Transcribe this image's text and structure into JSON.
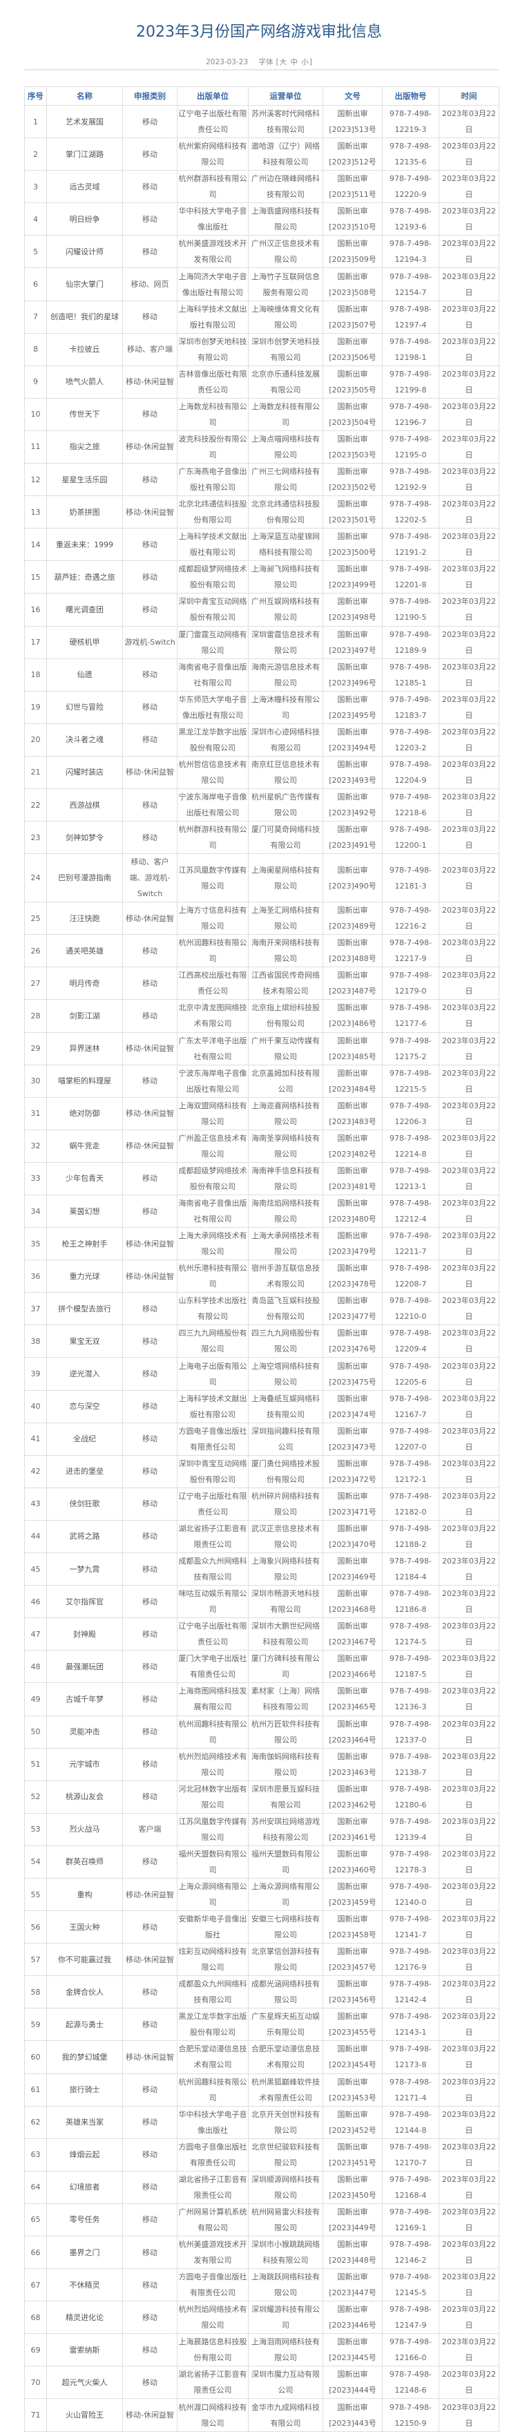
{
  "page": {
    "title": "2023年3月份国产网络游戏审批信息",
    "date": "2023-03-23",
    "font_label": "字体",
    "font_open": "[",
    "font_large": "大",
    "font_medium": "中",
    "font_small": "小",
    "font_close": "]"
  },
  "colors": {
    "title": "#2d5b8e",
    "header": "#3a6aa5",
    "text": "#666666",
    "border": "#dedede"
  },
  "table": {
    "headers": [
      "序号",
      "名称",
      "申报类别",
      "出版单位",
      "运营单位",
      "文号",
      "出版物号",
      "时间"
    ],
    "rows": [
      [
        "1",
        "艺术发展国",
        "移动",
        "辽宁电子出版社有限责任公司",
        "苏州溪客时代网络科技有限公司",
        "国新出审[2023]513号",
        "978-7-498-12219-3",
        "2023年03月22日"
      ],
      [
        "2",
        "掌门江湖路",
        "移动",
        "杭州紫府网络科技有限公司",
        "遨哈游（辽宁）网络科技有限公司",
        "国新出审[2023]512号",
        "978-7-498-12135-6",
        "2023年03月22日"
      ],
      [
        "3",
        "远古灵域",
        "移动",
        "杭州群游科技有限公司",
        "广州边在晓峰网络科技有限公司",
        "国新出审[2023]511号",
        "978-7-498-12220-9",
        "2023年03月22日"
      ],
      [
        "4",
        "明日纷争",
        "移动",
        "华中科技大学电子音像出版社",
        "上海翡盛网络科技有限公司",
        "国新出审[2023]510号",
        "978-7-498-12193-6",
        "2023年03月22日"
      ],
      [
        "5",
        "闪耀设计师",
        "移动",
        "杭州美盛游戏技术开发有限公司",
        "广州汉正信息技术有限公司",
        "国新出审[2023]509号",
        "978-7-498-12194-3",
        "2023年03月22日"
      ],
      [
        "6",
        "仙宗大掌门",
        "移动、网页",
        "上海同济大学电子音像出版社有限公司",
        "上海竹子互联网信息服务有限公司",
        "国新出审[2023]508号",
        "978-7-498-12154-7",
        "2023年03月22日"
      ],
      [
        "7",
        "创造吧！我们的星球",
        "移动",
        "上海科学技术文献出版社有限公司",
        "上海映维体育文化有限公司",
        "国新出审[2023]507号",
        "978-7-498-12197-4",
        "2023年03月22日"
      ],
      [
        "8",
        "卡拉彼丘",
        "移动、客户端",
        "深圳市创梦天地科技有限公司",
        "深圳市创梦天地科技有限公司",
        "国新出审[2023]506号",
        "978-7-498-12198-1",
        "2023年03月22日"
      ],
      [
        "9",
        "喷气火箭人",
        "移动-休闲益智",
        "吉林音像出版社有限责任公司",
        "北京亦乐通科技发展有限公司",
        "国新出审[2023]505号",
        "978-7-498-12199-8",
        "2023年03月22日"
      ],
      [
        "10",
        "传世天下",
        "移动",
        "上海数龙科技有限公司",
        "上海数龙科技有限公司",
        "国新出审[2023]504号",
        "978-7-498-12196-7",
        "2023年03月22日"
      ],
      [
        "11",
        "指尖之旅",
        "移动-休闲益智",
        "波克科技股份有限公司",
        "上海点喵网络科技有限公司",
        "国新出审[2023]503号",
        "978-7-498-12195-0",
        "2023年03月22日"
      ],
      [
        "12",
        "星星生活乐园",
        "移动",
        "广东海燕电子音像出版社有限公司",
        "广州三七网络科技有限公司",
        "国新出审[2023]502号",
        "978-7-498-12192-9",
        "2023年03月22日"
      ],
      [
        "13",
        "奶茶拼图",
        "移动-休闲益智",
        "北京北纬通信科技股份有限公司",
        "北京北纬通信科技股份有限公司",
        "国新出审[2023]501号",
        "978-7-498-12202-5",
        "2023年03月22日"
      ],
      [
        "14",
        "重返未来：1999",
        "移动",
        "上海科学技术文献出版社有限公司",
        "上海深蓝互动星锦网络科技有限公司",
        "国新出审[2023]500号",
        "978-7-498-12191-2",
        "2023年03月22日"
      ],
      [
        "15",
        "葫芦娃：奇遇之旅",
        "移动",
        "成都超级梦网络技术股份有限公司",
        "上海昶飞网络科技有限公司",
        "国新出审[2023]499号",
        "978-7-498-12201-8",
        "2023年03月22日"
      ],
      [
        "16",
        "曙光调查团",
        "移动",
        "深圳中青宝互动网络股份有限公司",
        "广州互娱网络科技有限公司",
        "国新出审[2023]498号",
        "978-7-498-12190-5",
        "2023年03月22日"
      ],
      [
        "17",
        "硬核机甲",
        "游戏机-Switch",
        "厦门雷霆互动网络有限公司",
        "深圳雷霆信息技术有限公司",
        "国新出审[2023]497号",
        "978-7-498-12189-9",
        "2023年03月22日"
      ],
      [
        "18",
        "仙遗",
        "移动",
        "海南省电子音像出版社有限公司",
        "海南元游信息技术有限公司",
        "国新出审[2023]496号",
        "978-7-498-12185-1",
        "2023年03月22日"
      ],
      [
        "19",
        "幻世与冒险",
        "移动",
        "华东师范大学电子音像出版社有限公司",
        "上海沐瞳科技有限公司",
        "国新出审[2023]495号",
        "978-7-498-12183-7",
        "2023年03月22日"
      ],
      [
        "20",
        "决斗者之魂",
        "移动",
        "黑龙江龙华数字出版股份有限公司",
        "深圳市心迹网络科技有限公司",
        "国新出审[2023]494号",
        "978-7-498-12203-2",
        "2023年03月22日"
      ],
      [
        "21",
        "闪耀时装店",
        "移动-休闲益智",
        "杭州哲信信息技术有限公司",
        "南京红豆信息技术有限公司",
        "国新出审[2023]493号",
        "978-7-498-12204-9",
        "2023年03月22日"
      ],
      [
        "22",
        "西游战棋",
        "移动",
        "宁波东海岸电子音像出版社有限公司",
        "杭州星帆广告传媒有限公司",
        "国新出审[2023]492号",
        "978-7-498-12218-6",
        "2023年03月22日"
      ],
      [
        "23",
        "剑神如梦令",
        "移动",
        "杭州群游科技有限公司",
        "厦门可莫奇网络科技有限公司",
        "国新出审[2023]491号",
        "978-7-498-12200-1",
        "2023年03月22日"
      ],
      [
        "24",
        "巴别号漫游指南",
        "移动、客户端、游戏机-Switch",
        "江苏凤凰数字传媒有限公司",
        "上海阑星网络科技有限公司",
        "国新出审[2023]490号",
        "978-7-498-12181-3",
        "2023年03月22日"
      ],
      [
        "25",
        "汪汪快跑",
        "移动-休闲益智",
        "上海方寸信息科技有限公司",
        "上海圣汇网络科技有限公司",
        "国新出审[2023]489号",
        "978-7-498-12216-2",
        "2023年03月22日"
      ],
      [
        "26",
        "通关吧英雄",
        "移动",
        "杭州润趣科技有限公司",
        "海南开来网络科技有限公司",
        "国新出审[2023]488号",
        "978-7-498-12217-9",
        "2023年03月22日"
      ],
      [
        "27",
        "明月传奇",
        "移动",
        "江西高校出版社有限责任公司",
        "江西省国民传奇网络技术有限公司",
        "国新出审[2023]487号",
        "978-7-498-12179-0",
        "2023年03月22日"
      ],
      [
        "28",
        "剑影江湖",
        "移动",
        "北京中清龙图网络技术有限公司",
        "北京指上缤纷科技股份有限公司",
        "国新出审[2023]486号",
        "978-7-498-12177-6",
        "2023年03月22日"
      ],
      [
        "29",
        "异界迷林",
        "移动-休闲益智",
        "广东太平洋电子出版社有限公司",
        "广州千果互动传媒有限公司",
        "国新出审[2023]485号",
        "978-7-498-12175-2",
        "2023年03月22日"
      ],
      [
        "30",
        "喵掌柜的料理屋",
        "移动",
        "宁波东海岸电子音像出版社有限公司",
        "北京盖姆加科技有限公司",
        "国新出审[2023]484号",
        "978-7-498-12215-5",
        "2023年03月22日"
      ],
      [
        "31",
        "绝对防御",
        "移动-休闲益智",
        "上海双盟网络科技有限公司",
        "上海迩喜网络科技有限公司",
        "国新出审[2023]483号",
        "978-7-498-12206-3",
        "2023年03月22日"
      ],
      [
        "32",
        "蜗牛竞走",
        "移动-休闲益智",
        "广州盈正信息技术有限公司",
        "海南圣享网络科技有限公司",
        "国新出审[2023]482号",
        "978-7-498-12214-8",
        "2023年03月22日"
      ],
      [
        "33",
        "少年包青天",
        "移动",
        "成都超级梦网络技术股份有限公司",
        "海南神手信息科技有限公司",
        "国新出审[2023]481号",
        "978-7-498-12213-1",
        "2023年03月22日"
      ],
      [
        "34",
        "莱茵幻想",
        "移动",
        "海南省电子音像出版社有限公司",
        "海南炫焰网络科技有限公司",
        "国新出审[2023]480号",
        "978-7-498-12212-4",
        "2023年03月22日"
      ],
      [
        "35",
        "枪王之神射手",
        "移动-休闲益智",
        "上海大承网络技术有限公司",
        "上海大承网络技术有限公司",
        "国新出审[2023]479号",
        "978-7-498-12211-7",
        "2023年03月22日"
      ],
      [
        "36",
        "重力光球",
        "移动-休闲益智",
        "杭州乐港科技有限公司",
        "宿州手游互联信息技术有限公司",
        "国新出审[2023]478号",
        "978-7-498-12208-7",
        "2023年03月22日"
      ],
      [
        "37",
        "拼个模型去旅行",
        "移动",
        "山东科学技术出版社有限公司",
        "青岛蓝飞互娱科技股份有限公司",
        "国新出审[2023]477号",
        "978-7-498-12210-0",
        "2023年03月22日"
      ],
      [
        "38",
        "果宝无双",
        "移动",
        "四三九九网络股份有限公司",
        "四三九九网络股份有限公司",
        "国新出审[2023]476号",
        "978-7-498-12209-4",
        "2023年03月22日"
      ],
      [
        "39",
        "逆光潜入",
        "移动",
        "上海电子出版有限公司",
        "上海空塔网络科技有限公司",
        "国新出审[2023]475号",
        "978-7-498-12205-6",
        "2023年03月22日"
      ],
      [
        "40",
        "恋与深空",
        "移动",
        "上海科学技术文献出版社有限公司",
        "上海叠纸互娱网络科技有限公司",
        "国新出审[2023]474号",
        "978-7-498-12167-7",
        "2023年03月22日"
      ],
      [
        "41",
        "全战纪",
        "移动",
        "方圆电子音像出版社有限责任公司",
        "深圳指间趣科技有限公司",
        "国新出审[2023]473号",
        "978-7-498-12207-0",
        "2023年03月22日"
      ],
      [
        "42",
        "进击的堡垒",
        "移动",
        "深圳中青宝互动网络股份有限公司",
        "厦门勇仕网络技术股份有限公司",
        "国新出审[2023]472号",
        "978-7-498-12172-1",
        "2023年03月22日"
      ],
      [
        "43",
        "侠剑狂歌",
        "移动",
        "辽宁电子出版社有限责任公司",
        "杭州碎片网络科技有限公司",
        "国新出审[2023]471号",
        "978-7-498-12182-0",
        "2023年03月22日"
      ],
      [
        "44",
        "武将之路",
        "移动",
        "湖北省扬子江影音有限责任公司",
        "武汉正祟信息技术有限公司",
        "国新出审[2023]470号",
        "978-7-498-12188-2",
        "2023年03月22日"
      ],
      [
        "45",
        "一梦九霄",
        "移动",
        "成都盈众九州网络科技有限公司",
        "上海象兴网络科技有限公司",
        "国新出审[2023]469号",
        "978-7-498-12184-4",
        "2023年03月22日"
      ],
      [
        "46",
        "艾尔指挥官",
        "移动",
        "咪咕互动娱乐有限公司",
        "深圳市畅游天地科技有限公司",
        "国新出审[2023]468号",
        "978-7-498-12186-8",
        "2023年03月22日"
      ],
      [
        "47",
        "封神殿",
        "移动",
        "辽宁电子出版社有限责任公司",
        "深圳市大鹏世纪网络科技有限公司",
        "国新出审[2023]467号",
        "978-7-498-12174-5",
        "2023年03月22日"
      ],
      [
        "48",
        "最强潮玩团",
        "移动",
        "厦门大学电子出版社有限责任公司",
        "厦门方碑科技有限公司",
        "国新出审[2023]466号",
        "978-7-498-12187-5",
        "2023年03月22日"
      ],
      [
        "49",
        "古城千年梦",
        "移动",
        "上海商图网络科技发展有限公司",
        "素材家（上海）网络科技有限公司",
        "国新出审[2023]465号",
        "978-7-498-12136-3",
        "2023年03月22日"
      ],
      [
        "50",
        "灵能冲击",
        "移动",
        "杭州润趣科技有限公司",
        "杭州万匠软件科技有限公司",
        "国新出审[2023]464号",
        "978-7-498-12137-0",
        "2023年03月22日"
      ],
      [
        "51",
        "元宇城市",
        "移动",
        "杭州烈焰网络技术有限公司",
        "海南伽蚂网络科技有限公司",
        "国新出审[2023]463号",
        "978-7-498-12138-7",
        "2023年03月22日"
      ],
      [
        "52",
        "桃源山友会",
        "移动",
        "河北冠林数字出版有限公司",
        "深圳市愿景互娱科技有限公司",
        "国新出审[2023]462号",
        "978-7-498-12180-6",
        "2023年03月22日"
      ],
      [
        "53",
        "烈火战马",
        "客户端",
        "江苏凤凰数字传媒有限公司",
        "苏州安琪拉网络游戏科技有限公司",
        "国新出审[2023]461号",
        "978-7-498-12139-4",
        "2023年03月22日"
      ],
      [
        "54",
        "群英召唤师",
        "移动",
        "福州天盟数码有限公司",
        "福州天盟数码有限公司",
        "国新出审[2023]460号",
        "978-7-498-12178-3",
        "2023年03月22日"
      ],
      [
        "55",
        "重构",
        "移动-休闲益智",
        "上海众源网络有限公司",
        "上海众源网络有限公司",
        "国新出审[2023]459号",
        "978-7-498-12140-0",
        "2023年03月22日"
      ],
      [
        "56",
        "王国火种",
        "移动",
        "安徽新华电子音像出版社",
        "安徽三七网络科技有限公司",
        "国新出审[2023]458号",
        "978-7-498-12141-7",
        "2023年03月22日"
      ],
      [
        "57",
        "你不可能赢过我",
        "移动-休闲益智",
        "炫彩互动网络科技有限公司",
        "北京掌信创游科技有限公司",
        "国新出审[2023]457号",
        "978-7-498-12176-9",
        "2023年03月22日"
      ],
      [
        "58",
        "金牌合伙人",
        "移动",
        "成都盈众九州网络科技有限公司",
        "成都光涵网络科技有限公司",
        "国新出审[2023]456号",
        "978-7-498-12142-4",
        "2023年03月22日"
      ],
      [
        "59",
        "起源与勇士",
        "移动",
        "黑龙江龙华数字出版股份有限公司",
        "广东星辉天拓互动娱乐有限公司",
        "国新出审[2023]455号",
        "978-7-498-12143-1",
        "2023年03月22日"
      ],
      [
        "60",
        "我的梦幻城堡",
        "移动-休闲益智",
        "合肥乐堂动漫信息技术有限公司",
        "合肥乐堂动漫信息技术有限公司",
        "国新出审[2023]454号",
        "978-7-498-12173-8",
        "2023年03月22日"
      ],
      [
        "61",
        "旅行骑士",
        "移动",
        "杭州润趣科技有限公司",
        "杭州黑狐巅峰软件技术有限责任公司",
        "国新出审[2023]453号",
        "978-7-498-12171-4",
        "2023年03月22日"
      ],
      [
        "62",
        "英雄来当家",
        "移动",
        "华中科技大学电子音像出版社",
        "北京开天创世科技有限公司",
        "国新出审[2023]452号",
        "978-7-498-12144-8",
        "2023年03月22日"
      ],
      [
        "63",
        "烽烟云起",
        "移动",
        "方圆电子音像出版社有限责任公司",
        "北京世纪骏软科技有限公司",
        "国新出审[2023]451号",
        "978-7-498-12170-7",
        "2023年03月22日"
      ],
      [
        "64",
        "幻境旅者",
        "移动",
        "湖北省扬子江影音有限责任公司",
        "深圳顺源网络科技有限公司",
        "国新出审[2023]450号",
        "978-7-498-12168-4",
        "2023年03月22日"
      ],
      [
        "65",
        "零号任务",
        "移动",
        "广州网易计算机系统有限公司",
        "杭州网易雷火科技有限公司",
        "国新出审[2023]449号",
        "978-7-498-12169-1",
        "2023年03月22日"
      ],
      [
        "66",
        "墨界之门",
        "移动",
        "杭州美盛游戏技术开发有限公司",
        "深圳市小猴跳跳网络科技有限公司",
        "国新出审[2023]448号",
        "978-7-498-12146-2",
        "2023年03月22日"
      ],
      [
        "67",
        "不休精灵",
        "移动",
        "方圆电子音像出版社有限责任公司",
        "上海跳跃网络科技有限公司",
        "国新出审[2023]447号",
        "978-7-498-12145-5",
        "2023年03月22日"
      ],
      [
        "68",
        "精灵进化论",
        "移动",
        "杭州烈焰网络技术有限公司",
        "深圳耀游科技有限公司",
        "国新出审[2023]446号",
        "978-7-498-12147-9",
        "2023年03月22日"
      ],
      [
        "69",
        "雷索纳斯",
        "移动",
        "上海晨路信息科技股份有限公司",
        "上海泪雨网络科技有限公司",
        "国新出审[2023]445号",
        "978-7-498-12166-0",
        "2023年03月22日"
      ],
      [
        "70",
        "超元气火柴人",
        "移动",
        "湖北省扬子江影音有限责任公司",
        "深圳市魔力互动有限公司",
        "国新出审[2023]444号",
        "978-7-498-12148-6",
        "2023年03月22日"
      ],
      [
        "71",
        "火山冒险王",
        "移动-休闲益智",
        "杭州渡口网络科技有限公司",
        "金华市九成网络科技有限公司",
        "国新出审[2023]443号",
        "978-7-498-12150-9",
        "2023年03月22日"
      ]
    ]
  }
}
